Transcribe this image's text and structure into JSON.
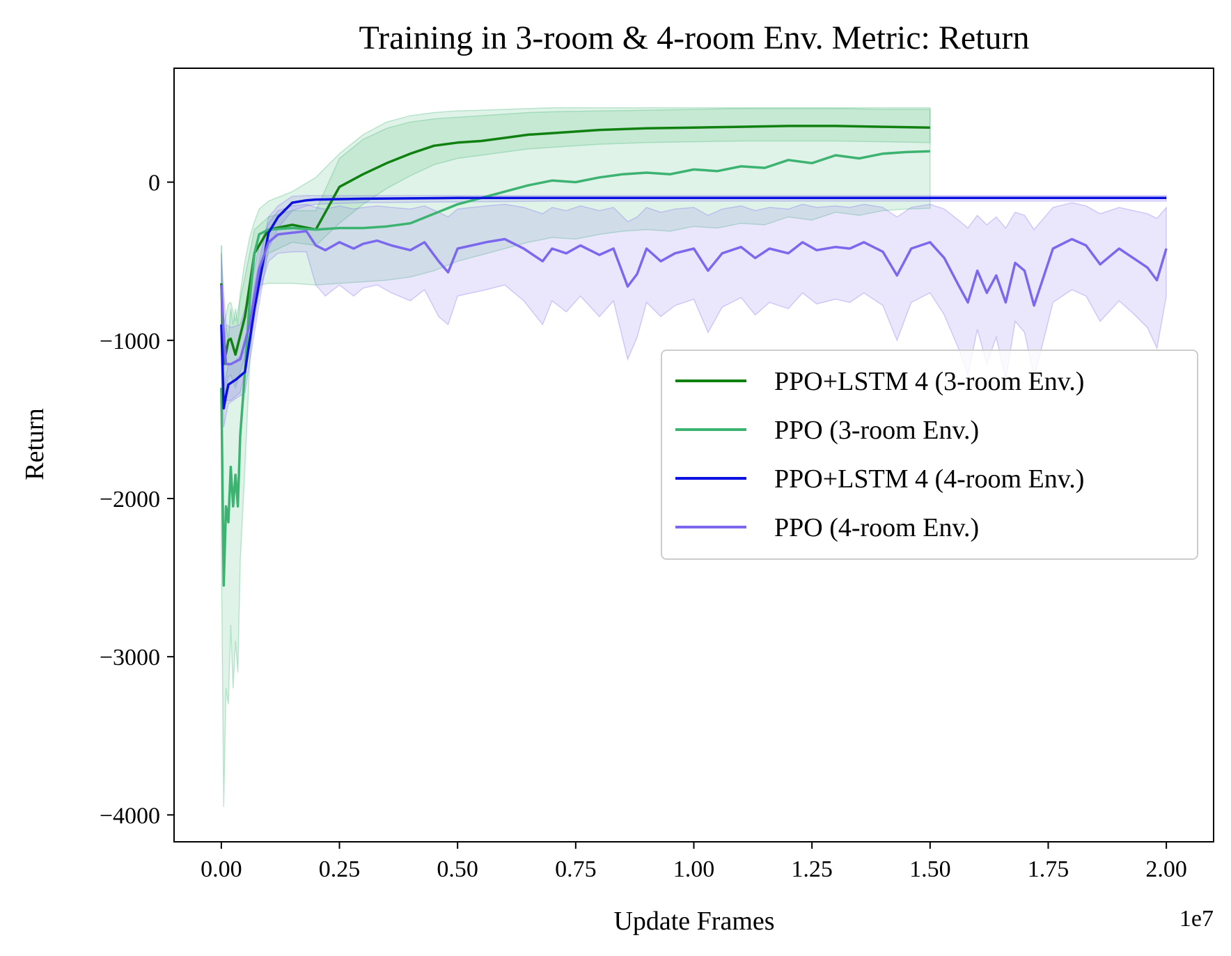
{
  "chart_data": {
    "type": "line",
    "title": "Training in 3-room & 4-room Env.  Metric: Return",
    "xlabel": "Update Frames",
    "ylabel": "Return",
    "x_offset_label": "1e7",
    "xlim": [
      -0.1,
      2.1
    ],
    "ylim": [
      -4170,
      720
    ],
    "x_ticks": [
      0.0,
      0.25,
      0.5,
      0.75,
      1.0,
      1.25,
      1.5,
      1.75,
      2.0
    ],
    "x_tick_labels": [
      "0.00",
      "0.25",
      "0.50",
      "0.75",
      "1.00",
      "1.25",
      "1.50",
      "1.75",
      "2.00"
    ],
    "y_ticks": [
      0,
      -1000,
      -2000,
      -3000,
      -4000
    ],
    "y_tick_labels": [
      "0",
      "−1000",
      "−2000",
      "−3000",
      "−4000"
    ],
    "grid": false,
    "legend_position": "center-right",
    "series": [
      {
        "name": "PPO+LSTM 4 (3-room Env.)",
        "color": "#108010",
        "band_color": "#3cb371",
        "x": [
          0.0,
          0.005,
          0.01,
          0.015,
          0.02,
          0.03,
          0.05,
          0.07,
          0.1,
          0.15,
          0.2,
          0.25,
          0.3,
          0.35,
          0.4,
          0.45,
          0.5,
          0.55,
          0.6,
          0.65,
          0.7,
          0.8,
          0.9,
          1.0,
          1.1,
          1.2,
          1.3,
          1.4,
          1.5
        ],
        "y": [
          -640,
          -1150,
          -1080,
          -1000,
          -990,
          -1090,
          -850,
          -450,
          -300,
          -270,
          -300,
          -30,
          50,
          120,
          180,
          230,
          250,
          260,
          280,
          300,
          310,
          330,
          340,
          345,
          350,
          355,
          355,
          350,
          345
        ],
        "lower": [
          -900,
          -1400,
          -1320,
          -1230,
          -1220,
          -1300,
          -1100,
          -700,
          -450,
          -380,
          -400,
          -260,
          -140,
          -40,
          40,
          110,
          150,
          170,
          190,
          210,
          220,
          240,
          250,
          255,
          260,
          260,
          260,
          255,
          250
        ],
        "upper": [
          -400,
          -900,
          -840,
          -770,
          -760,
          -880,
          -600,
          -300,
          -220,
          -180,
          -180,
          150,
          270,
          340,
          380,
          400,
          410,
          420,
          430,
          440,
          445,
          450,
          455,
          460,
          465,
          465,
          465,
          460,
          460
        ]
      },
      {
        "name": "PPO (3-room Env.)",
        "color": "#3cb371",
        "band_color": "#3cb371",
        "x": [
          0.0,
          0.005,
          0.01,
          0.015,
          0.02,
          0.025,
          0.03,
          0.035,
          0.04,
          0.05,
          0.06,
          0.07,
          0.08,
          0.1,
          0.15,
          0.2,
          0.25,
          0.3,
          0.35,
          0.4,
          0.45,
          0.5,
          0.55,
          0.6,
          0.65,
          0.7,
          0.75,
          0.8,
          0.85,
          0.9,
          0.95,
          1.0,
          1.05,
          1.1,
          1.15,
          1.2,
          1.25,
          1.3,
          1.35,
          1.4,
          1.45,
          1.5
        ],
        "y": [
          -1300,
          -2550,
          -2050,
          -2150,
          -1800,
          -2050,
          -1850,
          -2050,
          -1600,
          -1200,
          -750,
          -450,
          -330,
          -300,
          -290,
          -300,
          -290,
          -290,
          -280,
          -260,
          -200,
          -140,
          -100,
          -60,
          -20,
          10,
          0,
          30,
          50,
          60,
          50,
          80,
          70,
          100,
          90,
          140,
          120,
          170,
          150,
          180,
          190,
          195
        ],
        "lower": [
          -2300,
          -3950,
          -3200,
          -3300,
          -2800,
          -3200,
          -2900,
          -3100,
          -2400,
          -1800,
          -1150,
          -780,
          -650,
          -640,
          -640,
          -650,
          -640,
          -630,
          -620,
          -600,
          -560,
          -500,
          -460,
          -420,
          -380,
          -350,
          -360,
          -330,
          -310,
          -300,
          -310,
          -280,
          -290,
          -260,
          -270,
          -220,
          -240,
          -190,
          -210,
          -180,
          -170,
          -165
        ],
        "upper": [
          -400,
          -1150,
          -900,
          -1000,
          -800,
          -900,
          -800,
          -900,
          -700,
          -500,
          -350,
          -250,
          -170,
          -120,
          -60,
          30,
          180,
          300,
          380,
          420,
          440,
          450,
          455,
          460,
          465,
          470,
          470,
          470,
          470,
          470,
          470,
          470,
          470,
          470,
          470,
          470,
          470,
          470,
          470,
          470,
          470,
          470
        ]
      },
      {
        "name": "PPO+LSTM 4 (4-room Env.)",
        "color": "#0a10e0",
        "band_color": "#7b68ee",
        "x": [
          0.0,
          0.005,
          0.01,
          0.015,
          0.02,
          0.03,
          0.05,
          0.07,
          0.1,
          0.12,
          0.15,
          0.18,
          0.2,
          0.3,
          0.5,
          0.7,
          1.0,
          1.3,
          1.6,
          1.8,
          2.0
        ],
        "y": [
          -900,
          -1430,
          -1350,
          -1280,
          -1270,
          -1250,
          -1200,
          -800,
          -320,
          -220,
          -130,
          -115,
          -110,
          -105,
          -100,
          -100,
          -100,
          -100,
          -100,
          -100,
          -100
        ],
        "lower": [
          -1050,
          -1550,
          -1470,
          -1400,
          -1390,
          -1370,
          -1330,
          -950,
          -420,
          -290,
          -180,
          -150,
          -140,
          -130,
          -125,
          -120,
          -120,
          -120,
          -120,
          -120,
          -120
        ],
        "upper": [
          -750,
          -1300,
          -1230,
          -1160,
          -1150,
          -1130,
          -1070,
          -650,
          -220,
          -150,
          -90,
          -85,
          -85,
          -85,
          -85,
          -85,
          -85,
          -85,
          -85,
          -85,
          -85
        ]
      },
      {
        "name": "PPO (4-room Env.)",
        "color": "#7b68ee",
        "band_color": "#7b68ee",
        "x": [
          0.0,
          0.005,
          0.01,
          0.02,
          0.04,
          0.06,
          0.08,
          0.1,
          0.12,
          0.15,
          0.18,
          0.2,
          0.22,
          0.25,
          0.28,
          0.3,
          0.33,
          0.36,
          0.4,
          0.43,
          0.46,
          0.48,
          0.5,
          0.53,
          0.56,
          0.6,
          0.64,
          0.68,
          0.7,
          0.73,
          0.76,
          0.8,
          0.83,
          0.86,
          0.88,
          0.9,
          0.93,
          0.96,
          1.0,
          1.03,
          1.06,
          1.1,
          1.13,
          1.16,
          1.2,
          1.23,
          1.26,
          1.3,
          1.33,
          1.36,
          1.4,
          1.43,
          1.46,
          1.5,
          1.53,
          1.56,
          1.58,
          1.6,
          1.62,
          1.64,
          1.66,
          1.68,
          1.7,
          1.72,
          1.74,
          1.76,
          1.8,
          1.83,
          1.86,
          1.9,
          1.93,
          1.96,
          1.98,
          2.0
        ],
        "y": [
          -650,
          -950,
          -1150,
          -1150,
          -1120,
          -900,
          -550,
          -380,
          -330,
          -320,
          -310,
          -400,
          -430,
          -380,
          -420,
          -390,
          -370,
          -400,
          -430,
          -380,
          -500,
          -570,
          -420,
          -400,
          -380,
          -360,
          -420,
          -500,
          -420,
          -450,
          -400,
          -460,
          -420,
          -660,
          -580,
          -420,
          -500,
          -450,
          -420,
          -560,
          -450,
          -410,
          -480,
          -420,
          -450,
          -380,
          -430,
          -410,
          -420,
          -380,
          -440,
          -590,
          -420,
          -380,
          -480,
          -650,
          -760,
          -560,
          -700,
          -590,
          -760,
          -510,
          -560,
          -780,
          -600,
          -420,
          -360,
          -400,
          -520,
          -420,
          -480,
          -540,
          -620,
          -420
        ],
        "lower": [
          -900,
          -1200,
          -1380,
          -1380,
          -1330,
          -1050,
          -700,
          -500,
          -450,
          -440,
          -440,
          -650,
          -720,
          -650,
          -720,
          -670,
          -650,
          -700,
          -750,
          -680,
          -850,
          -900,
          -720,
          -700,
          -680,
          -650,
          -750,
          -900,
          -750,
          -820,
          -720,
          -850,
          -750,
          -1120,
          -980,
          -760,
          -850,
          -780,
          -740,
          -950,
          -790,
          -730,
          -840,
          -760,
          -800,
          -700,
          -770,
          -740,
          -760,
          -700,
          -780,
          -1000,
          -760,
          -700,
          -840,
          -1050,
          -1220,
          -930,
          -1150,
          -980,
          -1250,
          -880,
          -950,
          -1230,
          -1000,
          -760,
          -680,
          -720,
          -880,
          -750,
          -830,
          -920,
          -1050,
          -720
        ],
        "upper": [
          -450,
          -700,
          -900,
          -920,
          -900,
          -700,
          -400,
          -260,
          -180,
          -150,
          -140,
          -160,
          -170,
          -150,
          -170,
          -160,
          -150,
          -160,
          -170,
          -150,
          -190,
          -220,
          -170,
          -160,
          -150,
          -140,
          -160,
          -200,
          -160,
          -180,
          -150,
          -180,
          -160,
          -250,
          -220,
          -160,
          -190,
          -170,
          -160,
          -210,
          -170,
          -150,
          -180,
          -160,
          -170,
          -140,
          -160,
          -150,
          -160,
          -140,
          -160,
          -220,
          -160,
          -140,
          -170,
          -240,
          -290,
          -210,
          -270,
          -220,
          -290,
          -190,
          -210,
          -300,
          -230,
          -160,
          -130,
          -150,
          -200,
          -160,
          -180,
          -200,
          -230,
          -160
        ]
      }
    ]
  }
}
